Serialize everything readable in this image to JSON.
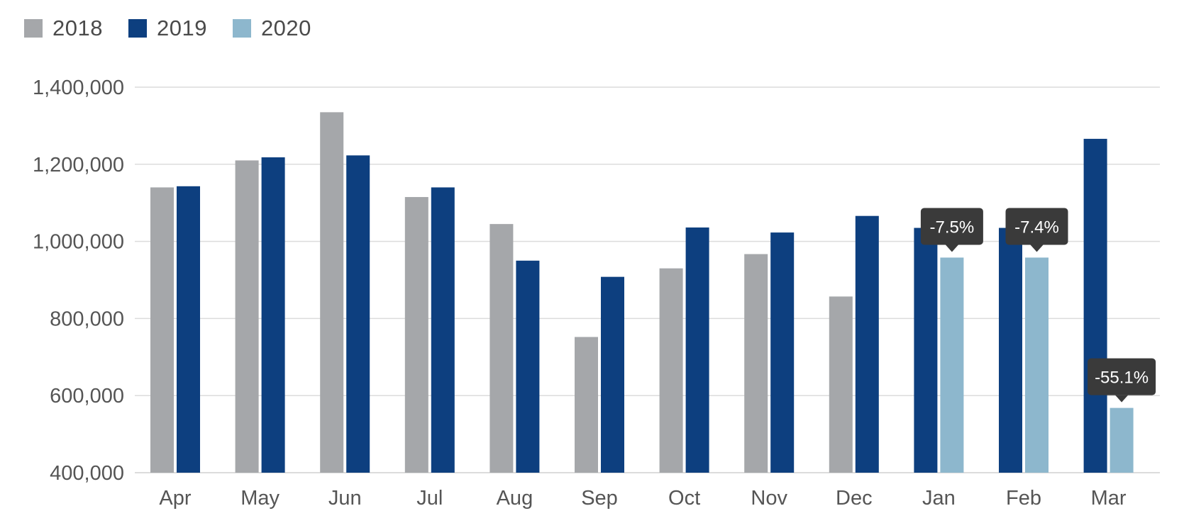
{
  "chart_data": {
    "type": "bar",
    "title": "",
    "xlabel": "",
    "ylabel": "",
    "categories": [
      "Apr",
      "May",
      "Jun",
      "Jul",
      "Aug",
      "Sep",
      "Oct",
      "Nov",
      "Dec",
      "Jan",
      "Feb",
      "Mar"
    ],
    "series": [
      {
        "name": "2018",
        "color": "#a5a7aa",
        "values": [
          1140000,
          1210000,
          1335000,
          1115000,
          1045000,
          752000,
          930000,
          967000,
          857000,
          null,
          null,
          null
        ]
      },
      {
        "name": "2019",
        "color": "#0d3f7f",
        "values": [
          1143000,
          1218000,
          1223000,
          1140000,
          950000,
          908000,
          1036000,
          1023000,
          1066000,
          1035000,
          1035000,
          1266000
        ]
      },
      {
        "name": "2020",
        "color": "#8db7cd",
        "values": [
          null,
          null,
          null,
          null,
          null,
          null,
          null,
          null,
          null,
          958000,
          958000,
          568000
        ]
      }
    ],
    "ylim": [
      400000,
      1400000
    ],
    "yticks": [
      400000,
      600000,
      800000,
      1000000,
      1200000,
      1400000
    ],
    "ytick_labels": [
      "400,000",
      "600,000",
      "800,000",
      "1,000,000",
      "1,200,000",
      "1,400,000"
    ],
    "grid": true,
    "legend": "top-left",
    "annotations": [
      {
        "category": "Jan",
        "series": "2020",
        "text": "-7.5%"
      },
      {
        "category": "Feb",
        "series": "2020",
        "text": "-7.4%"
      },
      {
        "category": "Mar",
        "series": "2020",
        "text": "-55.1%"
      }
    ],
    "annotation_color": "#3a3a3a",
    "grid_color": "#dcdcdc"
  }
}
